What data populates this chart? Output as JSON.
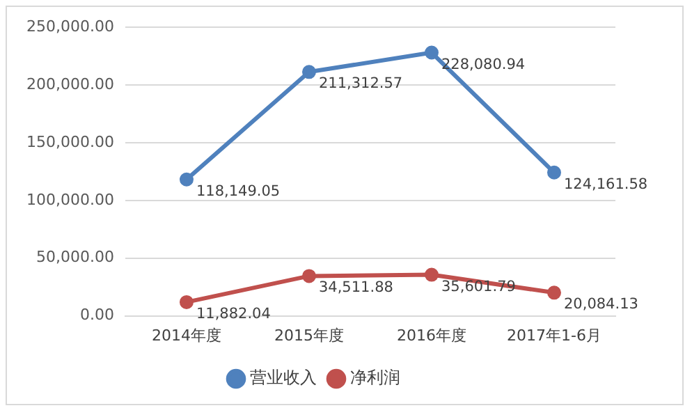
{
  "chart_data": {
    "type": "line",
    "categories": [
      "2014年度",
      "2015年度",
      "2016年度",
      "2017年1-6月"
    ],
    "series": [
      {
        "name": "营业收入",
        "color": "#4f81bd",
        "values": [
          118149.05,
          211312.57,
          228080.94,
          124161.58
        ],
        "value_labels": [
          "118,149.05",
          "211,312.57",
          "228,080.94",
          "124,161.58"
        ]
      },
      {
        "name": "净利润",
        "color": "#c0504d",
        "values": [
          11882.04,
          34511.88,
          35601.79,
          20084.13
        ],
        "value_labels": [
          "11,882.04",
          "34,511.88",
          "35,601.79",
          "20,084.13"
        ]
      }
    ],
    "ylim": [
      0,
      250000
    ],
    "yticks": [
      {
        "value": 0,
        "label": "0.00"
      },
      {
        "value": 50000,
        "label": "50,000.00"
      },
      {
        "value": 100000,
        "label": "100,000.00"
      },
      {
        "value": 150000,
        "label": "150,000.00"
      },
      {
        "value": 200000,
        "label": "200,000.00"
      },
      {
        "value": 250000,
        "label": "250,000.00"
      }
    ],
    "grid": "y",
    "legend": "bottom",
    "marker": "circle",
    "line_style": "solid"
  }
}
